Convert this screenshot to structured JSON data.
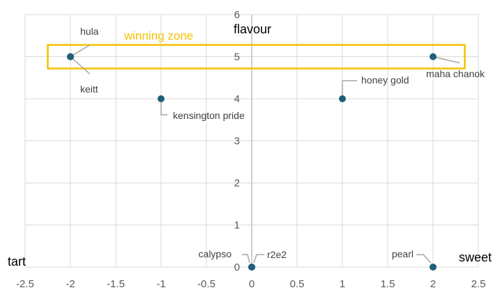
{
  "chart_data": {
    "type": "scatter",
    "title": "",
    "xlabel": "",
    "ylabel": "",
    "xlim": [
      -2.5,
      2.5
    ],
    "ylim": [
      0,
      6
    ],
    "xticks": [
      -2.5,
      -2,
      -1.5,
      -1,
      -0.5,
      0,
      0.5,
      1,
      1.5,
      2,
      2.5
    ],
    "yticks": [
      0,
      1,
      2,
      3,
      4,
      5,
      6
    ],
    "grid": true,
    "marker_color": "#1f5f7a",
    "points": [
      {
        "x": -2,
        "y": 5,
        "label": "hula"
      },
      {
        "x": -2,
        "y": 5,
        "label": "keitt"
      },
      {
        "x": -1,
        "y": 4,
        "label": "kensington pride"
      },
      {
        "x": 1,
        "y": 4,
        "label": "honey gold"
      },
      {
        "x": 2,
        "y": 5,
        "label": "maha chanok"
      },
      {
        "x": 0,
        "y": 0,
        "label": "calypso"
      },
      {
        "x": 0,
        "y": 0,
        "label": "r2e2"
      },
      {
        "x": 2,
        "y": 0,
        "label": "pearl"
      }
    ],
    "annotations": {
      "x_axis_left": "tart",
      "x_axis_right": "sweet",
      "y_axis_top": "flavour"
    },
    "zone": {
      "label": "winning zone",
      "x_range": [
        -2.25,
        2.35
      ],
      "y_range": [
        4.72,
        5.28
      ],
      "color": "#f5c000"
    }
  }
}
